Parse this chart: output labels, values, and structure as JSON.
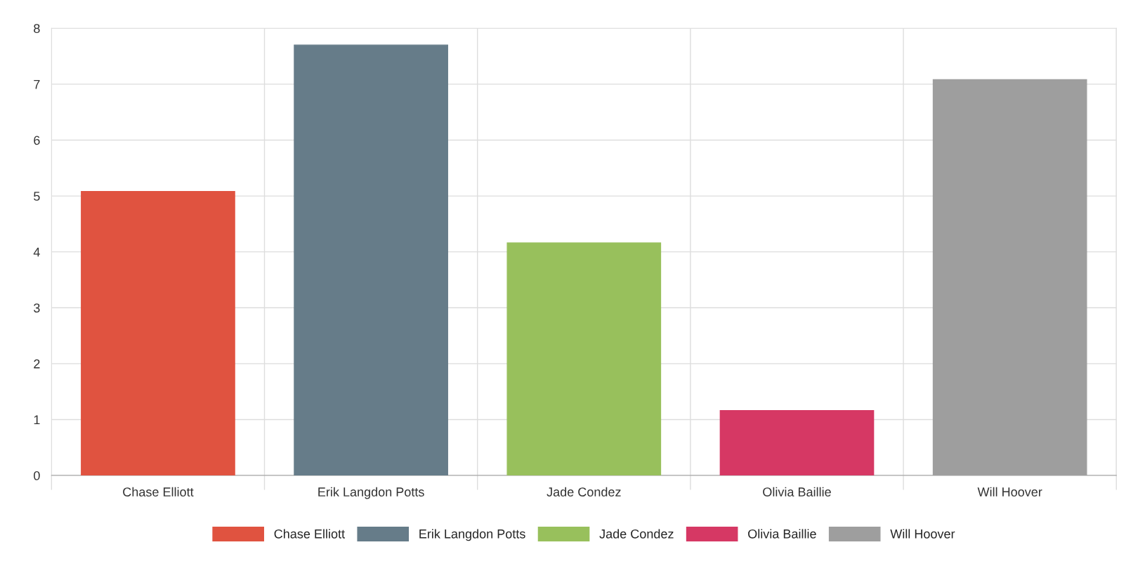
{
  "chart_data": {
    "type": "bar",
    "stacked": true,
    "categories": [
      "Chase Elliott",
      "Erik Langdon Potts",
      "Jade Condez",
      "Olivia Baillie",
      "Will Hoover"
    ],
    "series": [
      {
        "name": "Chase Elliott",
        "color": "#e05340",
        "values": [
          5.08,
          null,
          null,
          null,
          null
        ]
      },
      {
        "name": "Erik Langdon Potts",
        "color": "#667c89",
        "values": [
          null,
          7.7,
          null,
          null,
          null
        ]
      },
      {
        "name": "Jade Condez",
        "color": "#98c05c",
        "values": [
          null,
          null,
          4.16,
          null,
          null
        ]
      },
      {
        "name": "Olivia Baillie",
        "color": "#d63864",
        "values": [
          null,
          null,
          null,
          1.16,
          null
        ]
      },
      {
        "name": "Will Hoover",
        "color": "#9e9e9e",
        "values": [
          null,
          null,
          null,
          null,
          7.08
        ]
      }
    ],
    "ylim": [
      0,
      8
    ],
    "yticks": [
      0,
      1,
      2,
      3,
      4,
      5,
      6,
      7,
      8
    ],
    "grid": true,
    "legend": "bottom"
  }
}
